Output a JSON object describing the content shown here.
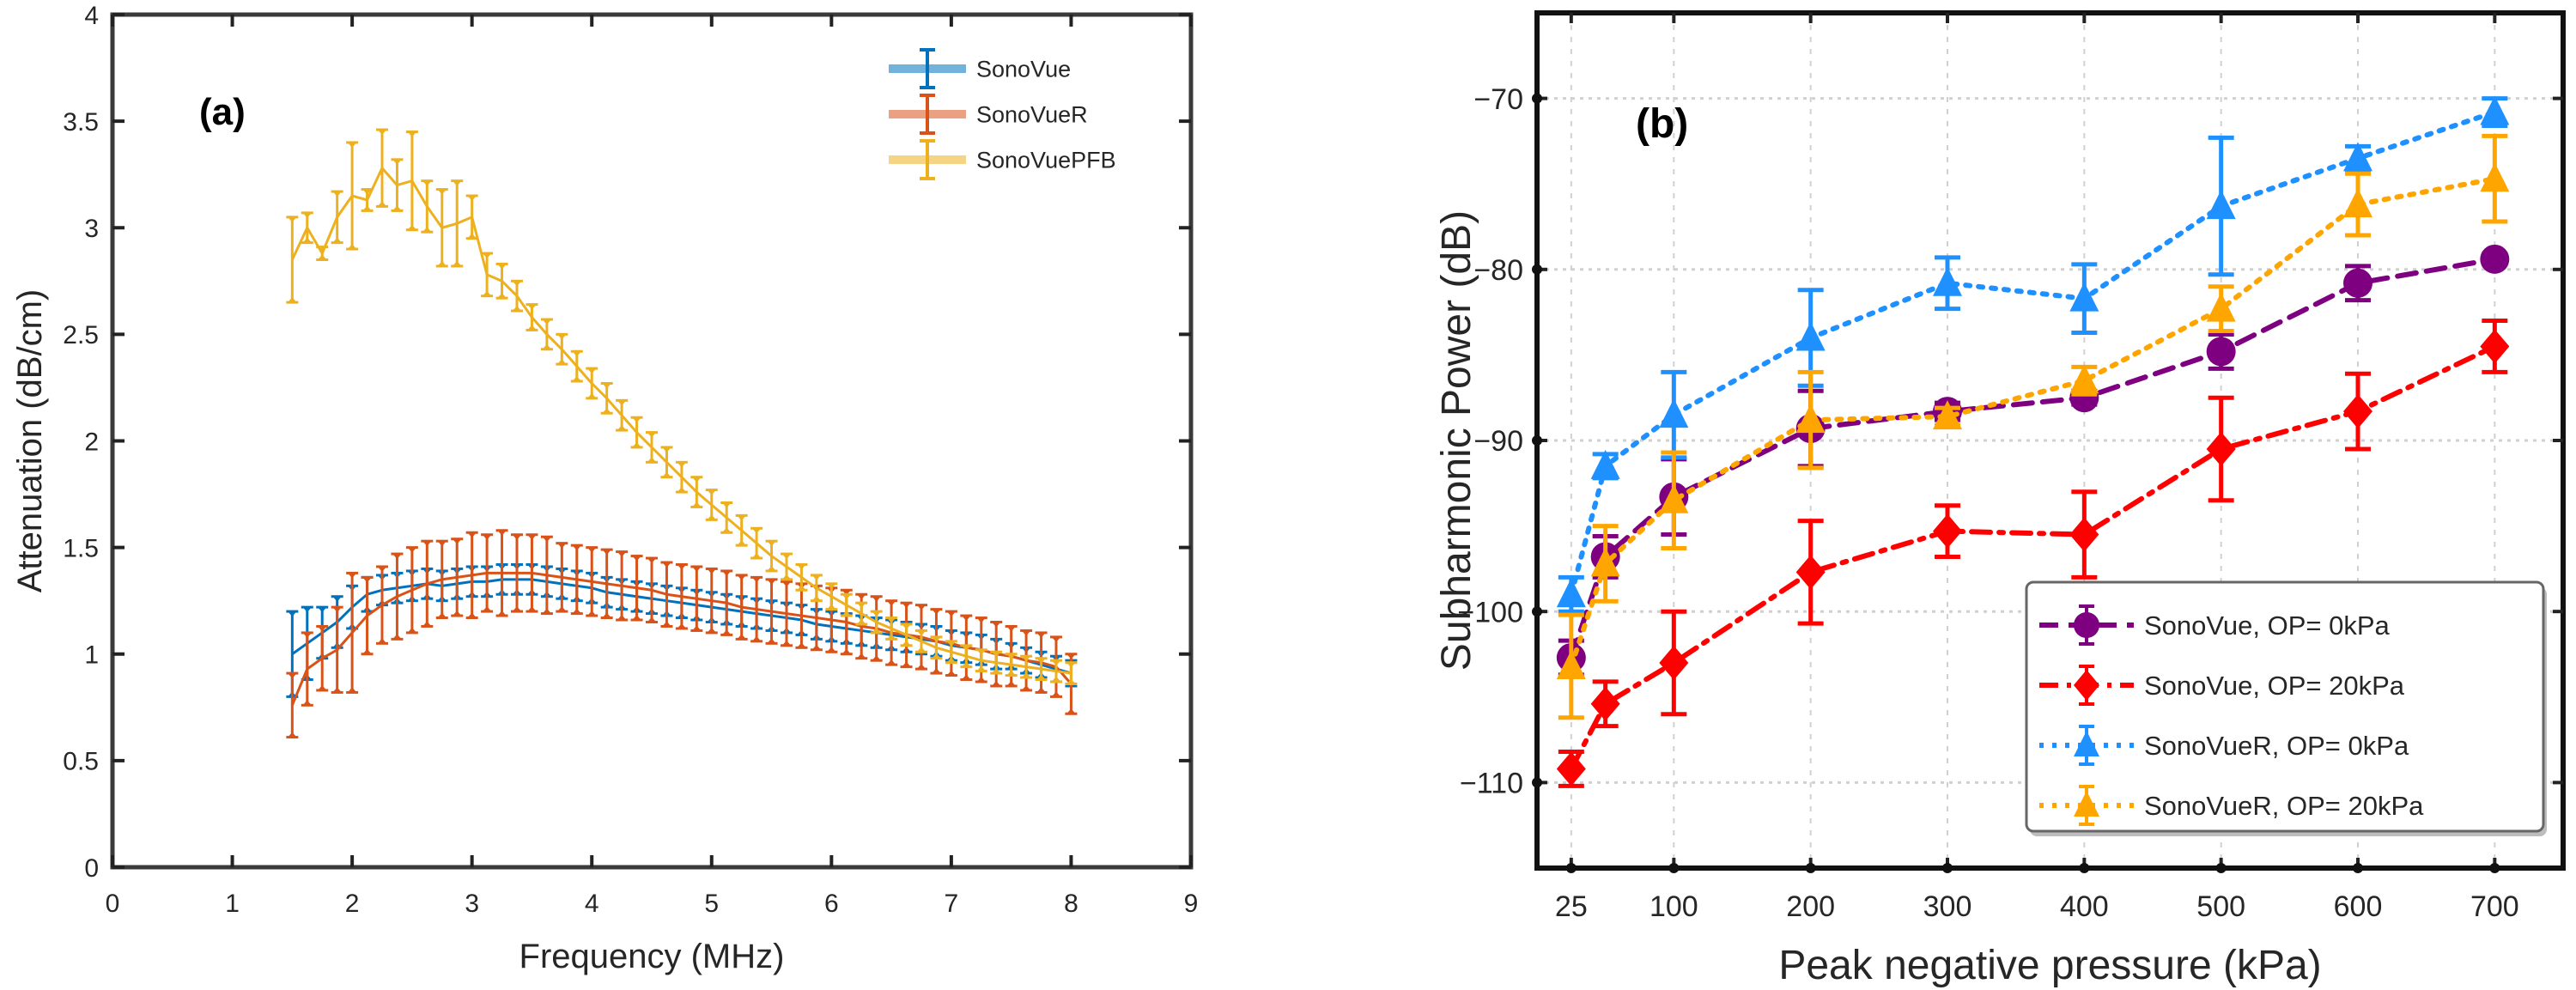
{
  "chart_data": [
    {
      "id": "a",
      "type": "line",
      "panel_label": "(a)",
      "title": "",
      "xlabel": "Frequency (MHz)",
      "ylabel": "Attenuation (dB/cm)",
      "xlim": [
        0,
        9
      ],
      "ylim": [
        0,
        4
      ],
      "xticks": [
        0,
        1,
        2,
        3,
        4,
        5,
        6,
        7,
        8,
        9
      ],
      "xtick_labels": [
        "0",
        "1",
        "2",
        "3",
        "4",
        "5",
        "6",
        "7",
        "8",
        "9"
      ],
      "yticks": [
        0,
        0.5,
        1,
        1.5,
        2,
        2.5,
        3,
        3.5,
        4
      ],
      "ytick_labels": [
        "0",
        "0.5",
        "1",
        "1.5",
        "2",
        "2.5",
        "3",
        "3.5",
        "4"
      ],
      "grid": false,
      "legend_position": "top-right",
      "error_bars": true,
      "x": [
        1.5,
        1.625,
        1.75,
        1.875,
        2.0,
        2.125,
        2.25,
        2.375,
        2.5,
        2.625,
        2.75,
        2.875,
        3.0,
        3.125,
        3.25,
        3.375,
        3.5,
        3.625,
        3.75,
        3.875,
        4.0,
        4.125,
        4.25,
        4.375,
        4.5,
        4.625,
        4.75,
        4.875,
        5.0,
        5.125,
        5.25,
        5.375,
        5.5,
        5.625,
        5.75,
        5.875,
        6.0,
        6.125,
        6.25,
        6.375,
        6.5,
        6.625,
        6.75,
        6.875,
        7.0,
        7.125,
        7.25,
        7.375,
        7.5,
        7.625,
        7.75,
        7.875,
        8.0
      ],
      "series": [
        {
          "name": "SonoVue",
          "color": "#0072BD",
          "values": [
            1.0,
            1.05,
            1.1,
            1.15,
            1.22,
            1.28,
            1.3,
            1.31,
            1.32,
            1.33,
            1.32,
            1.33,
            1.34,
            1.34,
            1.35,
            1.35,
            1.35,
            1.34,
            1.33,
            1.32,
            1.31,
            1.29,
            1.28,
            1.27,
            1.26,
            1.25,
            1.24,
            1.23,
            1.22,
            1.21,
            1.2,
            1.19,
            1.18,
            1.17,
            1.16,
            1.14,
            1.13,
            1.12,
            1.11,
            1.1,
            1.09,
            1.08,
            1.07,
            1.06,
            1.04,
            1.03,
            1.02,
            1.0,
            0.99,
            0.97,
            0.95,
            0.93,
            0.91
          ],
          "errors": [
            0.2,
            0.17,
            0.12,
            0.12,
            0.1,
            0.08,
            0.07,
            0.07,
            0.07,
            0.07,
            0.07,
            0.07,
            0.07,
            0.07,
            0.07,
            0.07,
            0.07,
            0.07,
            0.07,
            0.07,
            0.07,
            0.07,
            0.07,
            0.07,
            0.07,
            0.07,
            0.07,
            0.07,
            0.07,
            0.07,
            0.07,
            0.07,
            0.07,
            0.07,
            0.07,
            0.07,
            0.07,
            0.07,
            0.07,
            0.07,
            0.07,
            0.07,
            0.07,
            0.07,
            0.07,
            0.07,
            0.07,
            0.07,
            0.06,
            0.06,
            0.06,
            0.06,
            0.06
          ]
        },
        {
          "name": "SonoVueR",
          "color": "#D95319",
          "values": [
            0.76,
            0.93,
            0.98,
            1.02,
            1.1,
            1.18,
            1.23,
            1.27,
            1.3,
            1.33,
            1.35,
            1.36,
            1.37,
            1.38,
            1.38,
            1.38,
            1.38,
            1.37,
            1.36,
            1.35,
            1.34,
            1.33,
            1.32,
            1.31,
            1.3,
            1.28,
            1.27,
            1.26,
            1.25,
            1.24,
            1.22,
            1.21,
            1.2,
            1.19,
            1.18,
            1.17,
            1.16,
            1.15,
            1.13,
            1.12,
            1.1,
            1.09,
            1.08,
            1.06,
            1.05,
            1.03,
            1.02,
            1.0,
            0.99,
            0.97,
            0.96,
            0.94,
            0.86
          ],
          "errors": [
            0.15,
            0.17,
            0.15,
            0.2,
            0.28,
            0.18,
            0.18,
            0.2,
            0.2,
            0.2,
            0.18,
            0.18,
            0.2,
            0.18,
            0.2,
            0.18,
            0.18,
            0.18,
            0.16,
            0.16,
            0.16,
            0.16,
            0.16,
            0.15,
            0.15,
            0.15,
            0.15,
            0.15,
            0.15,
            0.15,
            0.15,
            0.15,
            0.15,
            0.15,
            0.15,
            0.15,
            0.15,
            0.15,
            0.15,
            0.15,
            0.15,
            0.15,
            0.15,
            0.15,
            0.15,
            0.15,
            0.15,
            0.15,
            0.14,
            0.14,
            0.14,
            0.14,
            0.14
          ]
        },
        {
          "name": "SonoVuePFB",
          "color": "#EDB120",
          "values": [
            2.85,
            3.0,
            2.88,
            3.05,
            3.15,
            3.13,
            3.28,
            3.2,
            3.22,
            3.1,
            3.0,
            3.02,
            3.05,
            2.78,
            2.75,
            2.68,
            2.58,
            2.5,
            2.43,
            2.35,
            2.27,
            2.2,
            2.12,
            2.04,
            1.97,
            1.9,
            1.83,
            1.76,
            1.7,
            1.64,
            1.58,
            1.52,
            1.46,
            1.41,
            1.36,
            1.31,
            1.27,
            1.23,
            1.19,
            1.15,
            1.12,
            1.09,
            1.06,
            1.03,
            1.01,
            0.99,
            0.97,
            0.96,
            0.95,
            0.94,
            0.93,
            0.92,
            0.91
          ],
          "errors": [
            0.2,
            0.07,
            0.03,
            0.12,
            0.25,
            0.05,
            0.18,
            0.12,
            0.23,
            0.12,
            0.18,
            0.2,
            0.1,
            0.1,
            0.08,
            0.07,
            0.06,
            0.07,
            0.07,
            0.07,
            0.07,
            0.07,
            0.07,
            0.07,
            0.07,
            0.07,
            0.07,
            0.07,
            0.07,
            0.07,
            0.07,
            0.07,
            0.07,
            0.06,
            0.06,
            0.06,
            0.06,
            0.05,
            0.05,
            0.05,
            0.05,
            0.05,
            0.05,
            0.05,
            0.05,
            0.05,
            0.05,
            0.05,
            0.05,
            0.05,
            0.05,
            0.05,
            0.05
          ]
        }
      ]
    },
    {
      "id": "b",
      "type": "line",
      "panel_label": "(b)",
      "title": "",
      "xlabel": "Peak negative pressure (kPa)",
      "ylabel": "Subharmonic Power (dB)",
      "xlim": [
        0,
        750
      ],
      "ylim": [
        -115,
        -65
      ],
      "xticks": [
        25,
        100,
        200,
        300,
        400,
        500,
        600,
        700
      ],
      "xtick_labels": [
        "25",
        "100",
        "200",
        "300",
        "400",
        "500",
        "600",
        "700"
      ],
      "yticks": [
        -110,
        -100,
        -90,
        -80,
        -70
      ],
      "ytick_labels": [
        "−110",
        "−100",
        "−90",
        "−80",
        "−70"
      ],
      "grid": true,
      "legend_position": "bottom-right",
      "error_bars": true,
      "x": [
        25,
        50,
        100,
        200,
        300,
        400,
        500,
        600,
        700
      ],
      "series": [
        {
          "name": "SonoVue, OP= 0kPa",
          "color": "#7E0080",
          "marker": "circle",
          "line_style": "dashed",
          "values": [
            -102.7,
            -96.8,
            -93.3,
            -89.3,
            -88.3,
            -87.5,
            -84.8,
            -80.8,
            -79.4
          ],
          "errors": [
            1.0,
            1.2,
            2.2,
            2.2,
            0.5,
            0.4,
            1.0,
            1.0,
            0.3
          ]
        },
        {
          "name": "SonoVue, OP= 20kPa",
          "color": "#FF0000",
          "marker": "diamond",
          "line_style": "dash-dot",
          "values": [
            -109.2,
            -105.4,
            -103.0,
            -97.7,
            -95.3,
            -95.5,
            -90.5,
            -88.3,
            -84.5
          ],
          "errors": [
            1.0,
            1.3,
            3.0,
            3.0,
            1.5,
            2.5,
            3.0,
            2.2,
            1.5
          ]
        },
        {
          "name": "SonoVueR, OP= 0kPa",
          "color": "#1E90FF",
          "marker": "triangle",
          "line_style": "dotted",
          "values": [
            -99.0,
            -91.5,
            -88.5,
            -84.0,
            -80.8,
            -81.7,
            -76.3,
            -73.5,
            -70.8
          ],
          "errors": [
            1.0,
            0.7,
            2.5,
            2.8,
            1.5,
            2.0,
            4.0,
            0.7,
            0.8
          ]
        },
        {
          "name": "SonoVueR, OP= 20kPa",
          "color": "#FFA500",
          "marker": "triangle",
          "line_style": "dotted",
          "values": [
            -103.2,
            -97.2,
            -93.5,
            -88.8,
            -88.6,
            -86.5,
            -82.3,
            -76.2,
            -74.7
          ],
          "errors": [
            3.0,
            2.2,
            2.8,
            2.8,
            0.5,
            0.8,
            1.3,
            1.8,
            2.5
          ]
        }
      ]
    }
  ]
}
